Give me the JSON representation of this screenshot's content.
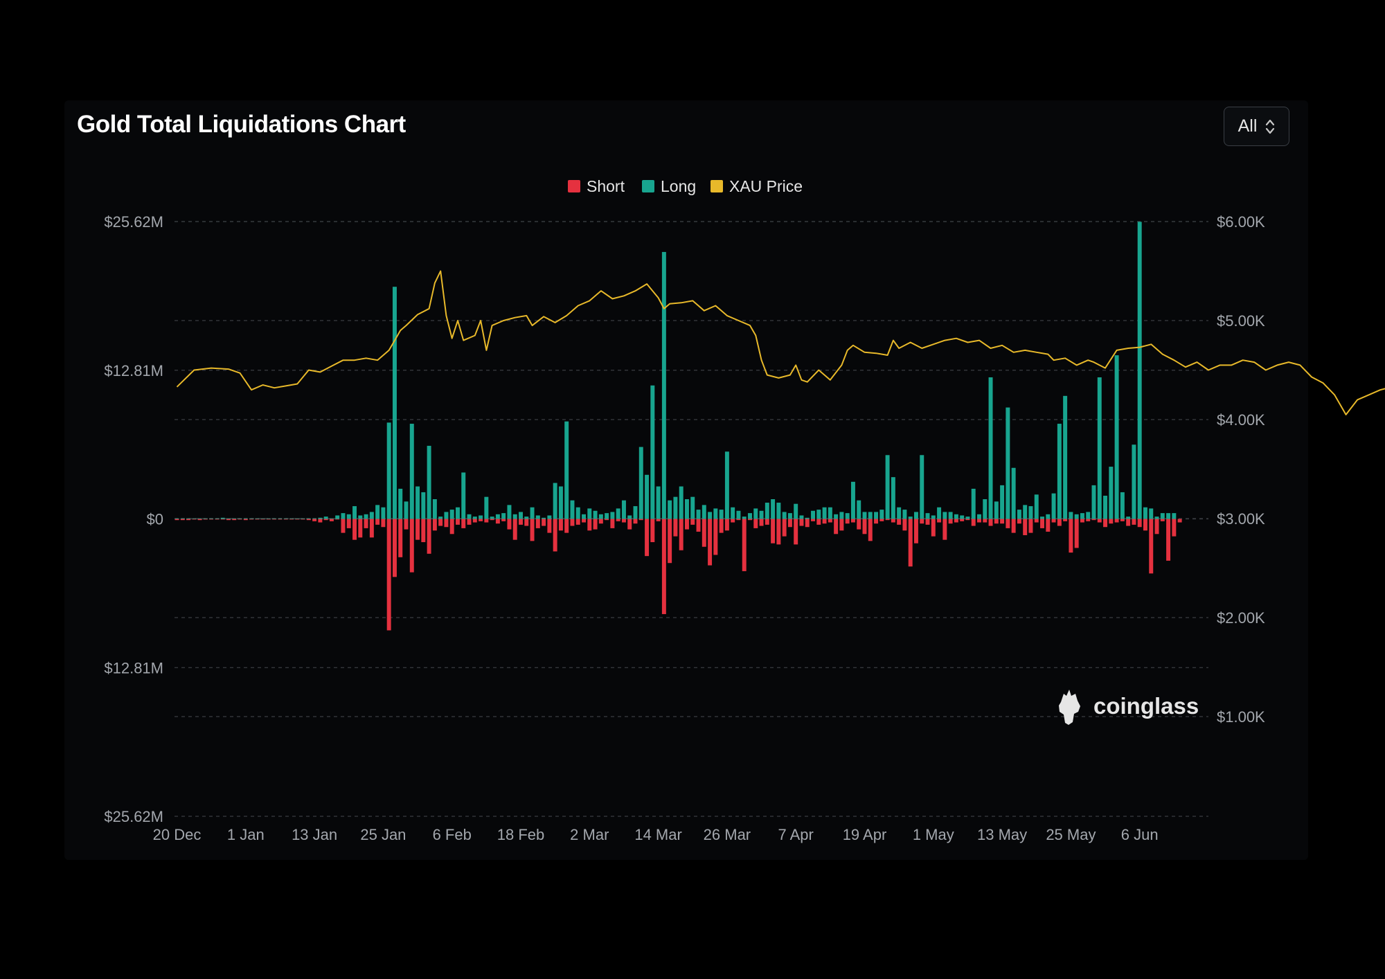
{
  "header": {
    "title": "Gold Total Liquidations Chart",
    "range_select": {
      "selected": "All",
      "icon": "chevron-up-down-icon"
    }
  },
  "watermark": {
    "text": "coinglass",
    "icon": "coinglass-logo-icon"
  },
  "colors": {
    "background": "#000000",
    "card": "#060709",
    "short": "#e5313f",
    "long": "#18a58f",
    "price": "#e8b92a",
    "grid": "#3a3d42",
    "axis_text": "#a3a7ad",
    "title": "#ffffff"
  },
  "chart_data": {
    "type": "bar",
    "title": "Gold Total Liquidations Chart",
    "legend": {
      "placement": "top-center",
      "entries": [
        "Short",
        "Long",
        "XAU Price"
      ]
    },
    "grid": true,
    "left_axis": {
      "tick_labels": [
        "$25.62M",
        "$12.81M",
        "$0",
        "$12.81M",
        "$25.62M"
      ],
      "range": [
        -25.62,
        25.62
      ],
      "unit": "$M"
    },
    "right_axis": {
      "tick_labels": [
        "$6.00K",
        "$5.00K",
        "$4.00K",
        "$3.00K",
        "$2.00K",
        "$1.00K"
      ],
      "range": [
        0,
        6.0
      ],
      "unit": "$K"
    },
    "x_axis": {
      "tick_labels": [
        "20 Dec",
        "1 Jan",
        "13 Jan",
        "25 Jan",
        "6 Feb",
        "18 Feb",
        "2 Mar",
        "14 Mar",
        "26 Mar",
        "7 Apr",
        "19 Apr",
        "1 May",
        "13 May",
        "25 May",
        "6 Jun"
      ],
      "days_per_label": 12
    },
    "series": [
      {
        "name": "Long",
        "values": [
          0.05,
          0.05,
          0.05,
          0.05,
          0.05,
          0.05,
          0.05,
          0.05,
          0.1,
          0.05,
          0.05,
          0.05,
          0.05,
          0.05,
          0.05,
          0.05,
          0.05,
          0.05,
          0.05,
          0.05,
          0.05,
          0.05,
          0.05,
          0.05,
          0.05,
          0.1,
          0.2,
          0.05,
          0.3,
          0.5,
          0.4,
          1.1,
          0.3,
          0.4,
          0.6,
          1.2,
          1.0,
          8.3,
          20.0,
          2.6,
          1.5,
          8.2,
          2.8,
          2.3,
          6.3,
          1.7,
          0.2,
          0.6,
          0.8,
          1.0,
          4.0,
          0.4,
          0.2,
          0.3,
          1.9,
          0.2,
          0.4,
          0.5,
          1.2,
          0.4,
          0.6,
          0.2,
          1.0,
          0.3,
          0.1,
          0.3,
          3.1,
          2.8,
          8.4,
          1.6,
          1.0,
          0.4,
          0.9,
          0.7,
          0.4,
          0.5,
          0.6,
          0.9,
          1.6,
          0.3,
          1.1,
          6.2,
          3.8,
          11.5,
          2.8,
          23.0,
          1.6,
          1.9,
          2.8,
          1.7,
          1.9,
          0.8,
          1.2,
          0.6,
          0.9,
          0.8,
          5.8,
          1.0,
          0.7,
          0.2,
          0.5,
          0.9,
          0.7,
          1.4,
          1.7,
          1.4,
          0.6,
          0.5,
          1.3,
          0.3,
          0.1,
          0.7,
          0.8,
          1.0,
          1.0,
          0.4,
          0.6,
          0.5,
          3.2,
          1.6,
          0.6,
          0.6,
          0.6,
          0.8,
          5.5,
          3.6,
          1.0,
          0.8,
          0.2,
          0.6,
          5.5,
          0.5,
          0.3,
          1.0,
          0.6,
          0.6,
          0.4,
          0.3,
          0.2,
          2.6,
          0.4,
          1.7,
          12.2,
          1.5,
          2.9,
          9.6,
          4.4,
          0.8,
          1.2,
          1.1,
          2.1,
          0.2,
          0.4,
          2.2,
          8.2,
          10.6,
          0.6,
          0.4,
          0.5,
          0.6,
          2.9,
          12.2,
          2.0,
          4.5,
          14.1,
          2.3,
          0.2,
          6.4,
          25.6,
          1.0,
          0.9,
          0.2,
          0.5,
          0.5,
          0.5
        ]
      },
      {
        "name": "Short",
        "values": [
          -0.1,
          -0.1,
          -0.1,
          -0.05,
          -0.1,
          -0.05,
          -0.05,
          -0.05,
          -0.05,
          -0.1,
          -0.1,
          -0.05,
          -0.1,
          -0.05,
          -0.05,
          -0.05,
          -0.05,
          -0.05,
          -0.05,
          -0.05,
          -0.05,
          -0.05,
          -0.05,
          -0.1,
          -0.2,
          -0.3,
          -0.1,
          -0.2,
          -0.05,
          -1.2,
          -0.8,
          -1.8,
          -1.6,
          -0.8,
          -1.6,
          -0.5,
          -0.7,
          -9.6,
          -5.0,
          -3.3,
          -0.9,
          -4.6,
          -1.8,
          -2.0,
          -3.0,
          -1.0,
          -0.6,
          -0.7,
          -1.3,
          -0.5,
          -0.8,
          -0.5,
          -0.3,
          -0.2,
          -0.3,
          -0.1,
          -0.4,
          -0.2,
          -0.9,
          -1.8,
          -0.5,
          -0.6,
          -1.9,
          -0.8,
          -0.6,
          -1.2,
          -2.8,
          -1.0,
          -1.2,
          -0.6,
          -0.5,
          -0.3,
          -1.0,
          -0.9,
          -0.4,
          -0.1,
          -0.8,
          -0.2,
          -0.3,
          -0.9,
          -0.4,
          -0.1,
          -3.2,
          -2.0,
          -0.2,
          -8.2,
          -3.8,
          -1.5,
          -2.7,
          -0.9,
          -0.5,
          -1.1,
          -2.4,
          -4.0,
          -3.1,
          -1.2,
          -1.0,
          -0.3,
          -0.1,
          -4.5,
          -0.1,
          -0.8,
          -0.6,
          -0.5,
          -2.1,
          -2.2,
          -1.5,
          -0.7,
          -2.2,
          -0.6,
          -0.7,
          -0.2,
          -0.5,
          -0.4,
          -0.3,
          -1.3,
          -1.0,
          -0.4,
          -0.3,
          -0.9,
          -1.3,
          -1.9,
          -0.4,
          -0.2,
          -0.1,
          -0.3,
          -0.5,
          -1.0,
          -4.1,
          -2.1,
          -0.4,
          -0.5,
          -1.5,
          -0.3,
          -1.8,
          -0.4,
          -0.3,
          -0.2,
          -0.1,
          -0.6,
          -0.3,
          -0.3,
          -0.6,
          -0.4,
          -0.4,
          -0.8,
          -1.2,
          -0.4,
          -1.4,
          -1.2,
          -0.3,
          -0.8,
          -1.1,
          -0.3,
          -0.6,
          -0.2,
          -2.9,
          -2.5,
          -0.3,
          -0.2,
          -0.1,
          -0.3,
          -0.7,
          -0.4,
          -0.3,
          -0.2,
          -0.6,
          -0.5,
          -0.7,
          -1.0,
          -4.7,
          -1.3,
          -0.2,
          -3.6,
          -1.5,
          -0.3
        ]
      },
      {
        "name": "XAU Price",
        "points": [
          [
            0,
            4.33
          ],
          [
            3,
            4.5
          ],
          [
            6,
            4.52
          ],
          [
            9,
            4.51
          ],
          [
            11,
            4.47
          ],
          [
            13,
            4.3
          ],
          [
            15,
            4.35
          ],
          [
            17,
            4.32
          ],
          [
            19,
            4.34
          ],
          [
            21,
            4.36
          ],
          [
            23,
            4.5
          ],
          [
            25,
            4.48
          ],
          [
            27,
            4.54
          ],
          [
            29,
            4.6
          ],
          [
            31,
            4.6
          ],
          [
            33,
            4.62
          ],
          [
            35,
            4.6
          ],
          [
            37,
            4.7
          ],
          [
            38,
            4.8
          ],
          [
            39,
            4.9
          ],
          [
            40,
            4.95
          ],
          [
            42,
            5.06
          ],
          [
            44,
            5.12
          ],
          [
            45,
            5.38
          ],
          [
            46,
            5.5
          ],
          [
            47,
            5.05
          ],
          [
            48,
            4.82
          ],
          [
            49,
            5.0
          ],
          [
            50,
            4.8
          ],
          [
            52,
            4.85
          ],
          [
            53,
            5.0
          ],
          [
            54,
            4.7
          ],
          [
            55,
            4.95
          ],
          [
            57,
            5.0
          ],
          [
            59,
            5.03
          ],
          [
            61,
            5.05
          ],
          [
            62,
            4.95
          ],
          [
            64,
            5.04
          ],
          [
            66,
            4.98
          ],
          [
            68,
            5.05
          ],
          [
            70,
            5.15
          ],
          [
            72,
            5.2
          ],
          [
            74,
            5.3
          ],
          [
            76,
            5.22
          ],
          [
            78,
            5.25
          ],
          [
            80,
            5.3
          ],
          [
            82,
            5.37
          ],
          [
            84,
            5.23
          ],
          [
            85,
            5.12
          ],
          [
            86,
            5.17
          ],
          [
            88,
            5.18
          ],
          [
            90,
            5.2
          ],
          [
            92,
            5.1
          ],
          [
            94,
            5.15
          ],
          [
            96,
            5.05
          ],
          [
            98,
            5.0
          ],
          [
            100,
            4.95
          ],
          [
            101,
            4.85
          ],
          [
            102,
            4.6
          ],
          [
            103,
            4.45
          ],
          [
            105,
            4.42
          ],
          [
            107,
            4.45
          ],
          [
            108,
            4.55
          ],
          [
            109,
            4.4
          ],
          [
            110,
            4.38
          ],
          [
            112,
            4.5
          ],
          [
            114,
            4.4
          ],
          [
            116,
            4.55
          ],
          [
            117,
            4.7
          ],
          [
            118,
            4.75
          ],
          [
            120,
            4.68
          ],
          [
            122,
            4.67
          ],
          [
            124,
            4.65
          ],
          [
            125,
            4.8
          ],
          [
            126,
            4.72
          ],
          [
            128,
            4.78
          ],
          [
            130,
            4.72
          ],
          [
            132,
            4.76
          ],
          [
            134,
            4.8
          ],
          [
            136,
            4.82
          ],
          [
            138,
            4.78
          ],
          [
            140,
            4.8
          ],
          [
            142,
            4.72
          ],
          [
            144,
            4.75
          ],
          [
            146,
            4.68
          ],
          [
            148,
            4.7
          ],
          [
            150,
            4.68
          ],
          [
            152,
            4.66
          ],
          [
            153,
            4.6
          ],
          [
            155,
            4.62
          ],
          [
            157,
            4.55
          ],
          [
            159,
            4.6
          ],
          [
            160,
            4.58
          ],
          [
            162,
            4.52
          ],
          [
            164,
            4.7
          ],
          [
            166,
            4.72
          ],
          [
            168,
            4.73
          ],
          [
            170,
            4.76
          ],
          [
            172,
            4.66
          ],
          [
            174,
            4.6
          ],
          [
            176,
            4.53
          ],
          [
            178,
            4.58
          ],
          [
            180,
            4.5
          ],
          [
            182,
            4.55
          ],
          [
            184,
            4.55
          ],
          [
            186,
            4.6
          ],
          [
            188,
            4.58
          ],
          [
            190,
            4.5
          ],
          [
            192,
            4.55
          ],
          [
            194,
            4.58
          ],
          [
            196,
            4.55
          ],
          [
            198,
            4.43
          ],
          [
            200,
            4.37
          ],
          [
            202,
            4.25
          ],
          [
            204,
            4.05
          ],
          [
            206,
            4.2
          ],
          [
            208,
            4.25
          ],
          [
            210,
            4.3
          ],
          [
            212,
            4.33
          ],
          [
            213,
            4.32
          ]
        ]
      }
    ]
  }
}
